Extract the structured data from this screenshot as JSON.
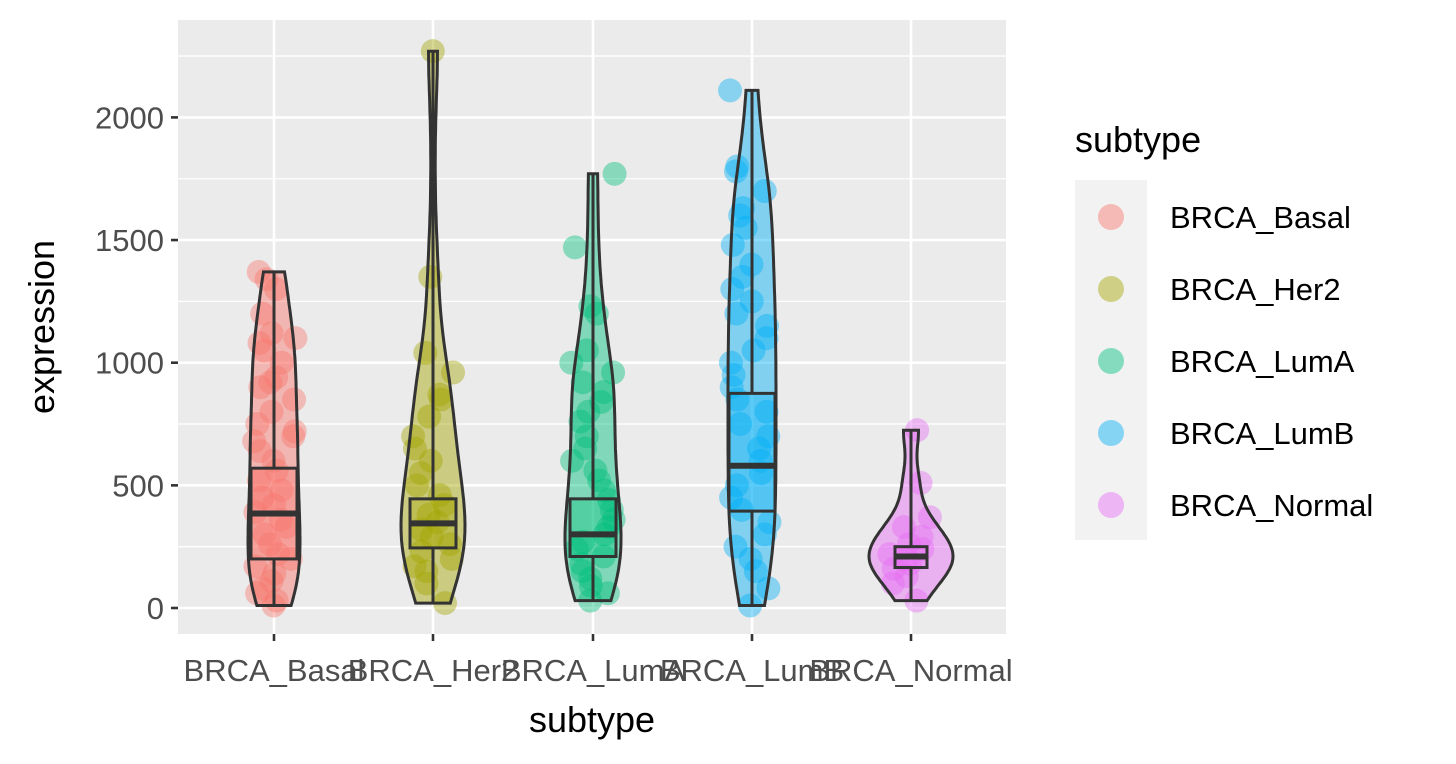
{
  "chart_data": {
    "type": "violin",
    "xlabel": "subtype",
    "ylabel": "expression",
    "ylim": [
      -100,
      2350
    ],
    "yticks": [
      0,
      500,
      1000,
      1500,
      2000
    ],
    "ytick_labels": [
      "0",
      "500",
      "1000",
      "1500",
      "2000"
    ],
    "grid": true,
    "legend": {
      "title": "subtype",
      "placement": "right",
      "entries": [
        "BRCA_Basal",
        "BRCA_Her2",
        "BRCA_LumA",
        "BRCA_LumB",
        "BRCA_Normal"
      ]
    },
    "categories": [
      "BRCA_Basal",
      "BRCA_Her2",
      "BRCA_LumA",
      "BRCA_LumB",
      "BRCA_Normal"
    ],
    "series": [
      {
        "name": "BRCA_Basal",
        "color": "#F8766D",
        "min": 10,
        "q1": 200,
        "median": 385,
        "q3": 570,
        "max": 1370,
        "points": [
          10,
          30,
          60,
          80,
          110,
          140,
          170,
          200,
          220,
          260,
          300,
          330,
          360,
          390,
          420,
          450,
          480,
          520,
          560,
          600,
          640,
          680,
          700,
          720,
          750,
          800,
          850,
          900,
          920,
          940,
          1000,
          1050,
          1080,
          1100,
          1120,
          1200,
          1300,
          1340,
          1370
        ]
      },
      {
        "name": "BRCA_Her2",
        "color": "#A3A500",
        "min": 20,
        "q1": 245,
        "median": 345,
        "q3": 445,
        "max": 2270,
        "points": [
          20,
          100,
          150,
          170,
          200,
          230,
          260,
          290,
          320,
          350,
          380,
          420,
          460,
          500,
          550,
          600,
          650,
          700,
          780,
          850,
          870,
          960,
          1040,
          1350,
          2270
        ]
      },
      {
        "name": "BRCA_LumA",
        "color": "#00BF7D",
        "min": 30,
        "q1": 210,
        "median": 300,
        "q3": 445,
        "max": 1770,
        "points": [
          30,
          60,
          90,
          120,
          150,
          180,
          210,
          240,
          270,
          300,
          330,
          360,
          400,
          440,
          480,
          520,
          560,
          600,
          650,
          700,
          760,
          800,
          840,
          880,
          920,
          960,
          1000,
          1050,
          1200,
          1230,
          1470,
          1770
        ]
      },
      {
        "name": "BRCA_LumB",
        "color": "#00B0F6",
        "min": 10,
        "q1": 395,
        "median": 580,
        "q3": 875,
        "max": 2110,
        "points": [
          10,
          80,
          150,
          200,
          250,
          300,
          350,
          400,
          450,
          500,
          550,
          600,
          650,
          700,
          750,
          800,
          850,
          900,
          950,
          1000,
          1050,
          1100,
          1150,
          1200,
          1250,
          1300,
          1350,
          1400,
          1480,
          1550,
          1600,
          1630,
          1700,
          1780,
          1800,
          2110
        ]
      },
      {
        "name": "BRCA_Normal",
        "color": "#E76BF3",
        "min": 30,
        "q1": 165,
        "median": 210,
        "q3": 250,
        "max": 725,
        "points": [
          30,
          100,
          130,
          160,
          180,
          200,
          220,
          240,
          260,
          290,
          330,
          370,
          510,
          725
        ]
      }
    ]
  }
}
